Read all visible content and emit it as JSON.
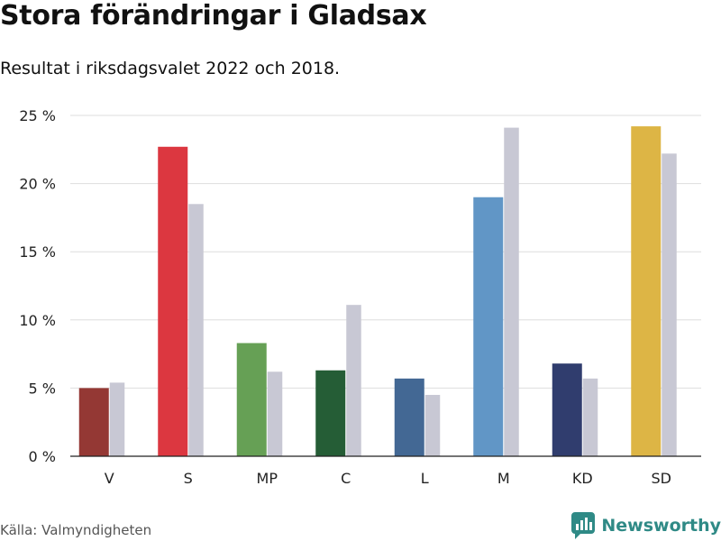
{
  "header": {
    "title": "Stora förändringar i Gladsax",
    "subtitle": "Resultat i riksdagsvalet 2022 och 2018."
  },
  "footer": {
    "source": "Källa: Valmyndigheten",
    "brand": "Newsworthy",
    "brand_color": "#2f8a86",
    "brand_icon": "bar-chart-speech-bubble-icon"
  },
  "chart_data": {
    "type": "bar",
    "categories": [
      "V",
      "S",
      "MP",
      "C",
      "L",
      "M",
      "KD",
      "SD"
    ],
    "series": [
      {
        "values": [
          5.0,
          22.7,
          8.3,
          6.3,
          5.7,
          19.0,
          6.8,
          24.2
        ],
        "colors": [
          "#943834",
          "#dc3740",
          "#66a055",
          "#255d36",
          "#436894",
          "#6196c6",
          "#303d6e",
          "#ddb545"
        ]
      },
      {
        "values": [
          5.4,
          18.5,
          6.2,
          11.1,
          4.5,
          24.1,
          5.7,
          22.2
        ],
        "color": "#c8c8d4"
      }
    ],
    "yticks": [
      "0 %",
      "5 %",
      "10 %",
      "15 %",
      "20 %",
      "25 %"
    ],
    "ylim": [
      0,
      25
    ],
    "grid": true
  }
}
